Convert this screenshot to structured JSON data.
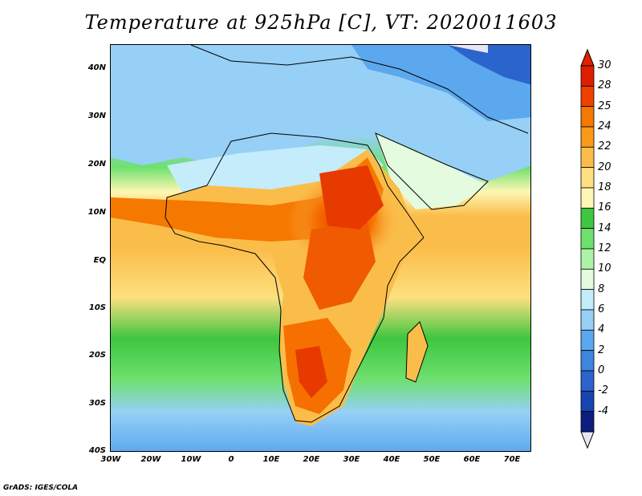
{
  "title": "Temperature at 925hPa [C], VT: 2020011603",
  "footer": "GrADS: IGES/COLA",
  "map": {
    "lat_labels": [
      "40N",
      "30N",
      "20N",
      "10N",
      "EQ",
      "10S",
      "20S",
      "30S",
      "40S"
    ],
    "lon_labels": [
      "30W",
      "20W",
      "10W",
      "0",
      "10E",
      "20E",
      "30E",
      "40E",
      "50E",
      "60E",
      "70E"
    ]
  },
  "legend": {
    "labels": [
      "30",
      "28",
      "25",
      "24",
      "22",
      "20",
      "18",
      "16",
      "14",
      "12",
      "10",
      "8",
      "6",
      "4",
      "2",
      "0",
      "-2",
      "-4"
    ],
    "colors": [
      "#dd1e00",
      "#f04000",
      "#f57800",
      "#fa9a1a",
      "#fbbd4a",
      "#fde080",
      "#fdf7b4",
      "#3ec63e",
      "#6ee06e",
      "#aef2a8",
      "#e4fbe0",
      "#c4ecfb",
      "#96d0f6",
      "#5ca8ee",
      "#3f84dd",
      "#2a64cc",
      "#1844b2",
      "#0c1f7e"
    ],
    "over_color": "#e02000",
    "under_color": "#e6e6f5"
  }
}
